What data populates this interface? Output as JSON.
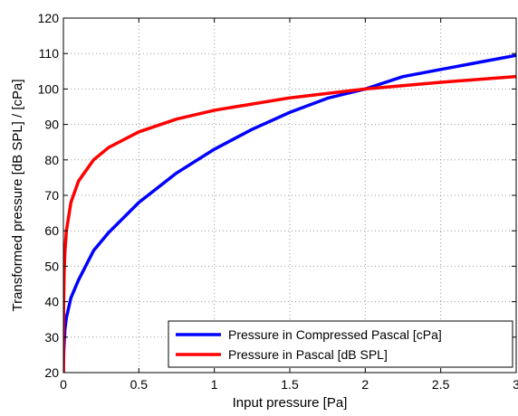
{
  "chart_data": {
    "type": "line",
    "xlabel": "Input pressure [Pa]",
    "ylabel": "Transformed pressure [dB SPL] / [cPa]",
    "xlim": [
      0,
      3
    ],
    "ylim": [
      20,
      120
    ],
    "x_ticks": [
      0,
      0.5,
      1,
      1.5,
      2,
      2.5,
      3
    ],
    "x_tick_labels": [
      "0",
      "0.5",
      "1",
      "1.5",
      "2",
      "2.5",
      "3"
    ],
    "y_ticks": [
      20,
      30,
      40,
      50,
      60,
      70,
      80,
      90,
      100,
      110,
      120
    ],
    "y_tick_labels": [
      "20",
      "30",
      "40",
      "50",
      "60",
      "70",
      "80",
      "90",
      "100",
      "110",
      "120"
    ],
    "grid": true,
    "legend_position": "bottom-right",
    "series": [
      {
        "name": "Pressure in Compressed Pascal [cPa]",
        "color": "#0000ff",
        "x": [
          0,
          0.001,
          0.003,
          0.01,
          0.02,
          0.05,
          0.1,
          0.2,
          0.3,
          0.5,
          0.75,
          1,
          1.25,
          1.5,
          1.75,
          2,
          2.25,
          2.5,
          2.75,
          3
        ],
        "y": [
          20,
          23.2,
          26.6,
          32.1,
          35.5,
          41.1,
          46.1,
          54.4,
          59.5,
          68.0,
          76.3,
          83.0,
          88.6,
          93.4,
          97.4,
          100.0,
          103.5,
          105.5,
          107.5,
          109.5
        ]
      },
      {
        "name": "Pressure in Pascal [dB SPL]",
        "color": "#ff0000",
        "x": [
          0,
          0.0002,
          0.0005,
          0.001,
          0.002,
          0.005,
          0.01,
          0.02,
          0.05,
          0.1,
          0.2,
          0.3,
          0.5,
          0.75,
          1,
          1.5,
          2,
          2.5,
          3
        ],
        "y": [
          20,
          20.0,
          28.0,
          34.0,
          40.0,
          48.0,
          54.0,
          60.0,
          68.0,
          74.0,
          80.0,
          83.5,
          87.9,
          91.5,
          94.0,
          97.5,
          100.0,
          101.9,
          103.5
        ]
      }
    ]
  }
}
